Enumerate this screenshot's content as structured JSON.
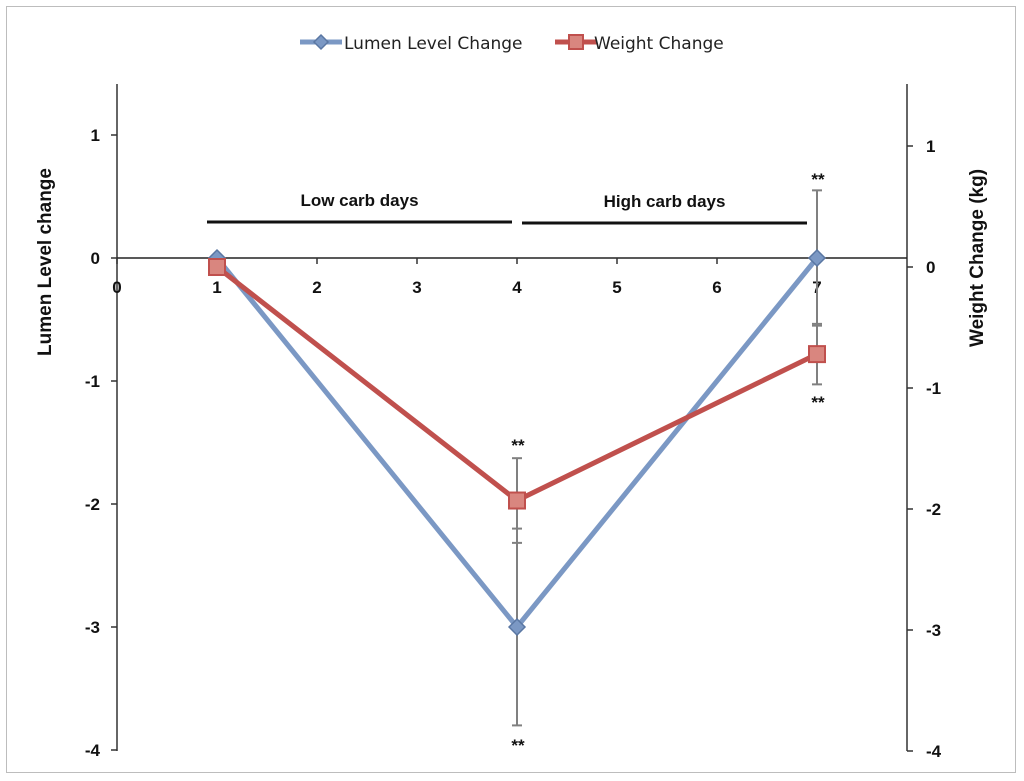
{
  "chart_data": {
    "type": "line",
    "x_ticks": [
      "0",
      "1",
      "2",
      "3",
      "4",
      "5",
      "6",
      "7"
    ],
    "xlim": [
      0,
      7.9
    ],
    "y_left": {
      "label": "Lumen Level change",
      "ticks": [
        "1",
        "0",
        "-1",
        "-2",
        "-3",
        "-4"
      ],
      "ylim": [
        -4,
        1.4
      ]
    },
    "y_right": {
      "label": "Weight Change (kg)",
      "ticks": [
        "1",
        "0",
        "-1",
        "-2",
        "-3",
        "-4"
      ],
      "ylim": [
        -4,
        1.5
      ]
    },
    "legend_position": "top-center",
    "series": [
      {
        "name": "Lumen Level Change",
        "axis": "left",
        "color": "#7b98c4",
        "marker": "diamond",
        "x": [
          1,
          4,
          7
        ],
        "y": [
          0,
          -3,
          0
        ],
        "error": [
          null,
          0.8,
          0.55
        ]
      },
      {
        "name": "Weight Change",
        "axis": "right",
        "color": "#c0504d",
        "marker": "square",
        "x": [
          1,
          4,
          7
        ],
        "y": [
          0,
          -1.93,
          -0.72
        ],
        "error": [
          null,
          0.35,
          0.25
        ]
      }
    ],
    "regions": [
      {
        "label": "Low carb days",
        "from": 0.9,
        "to": 3.95
      },
      {
        "label": "High carb days",
        "from": 4.05,
        "to": 6.9
      }
    ],
    "significance": [
      {
        "text": "**",
        "x": 4,
        "placement": "above"
      },
      {
        "text": "**",
        "x": 4,
        "placement": "below"
      },
      {
        "text": "**",
        "x": 7,
        "placement": "above"
      },
      {
        "text": "**",
        "x": 7,
        "placement": "below"
      }
    ]
  }
}
